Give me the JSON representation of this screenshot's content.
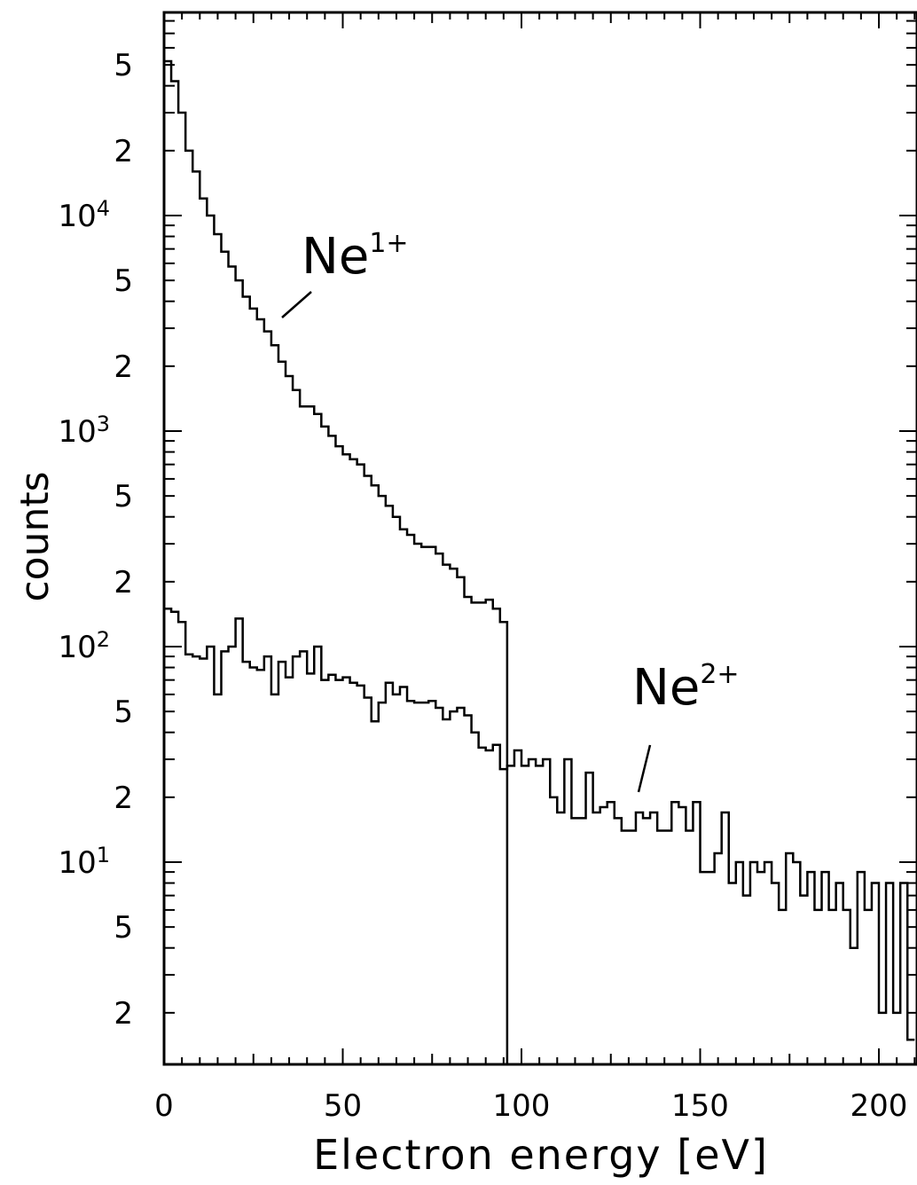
{
  "chart_data": {
    "type": "line",
    "xlabel": "Electron energy [eV]",
    "ylabel": "counts",
    "xlim": [
      0,
      210
    ],
    "ylim": [
      1.5,
      70000
    ],
    "yscale": "log",
    "grid": false,
    "x_ticks": [
      0,
      50,
      100,
      150,
      200
    ],
    "x_tick_labels": [
      "0",
      "50",
      "100",
      "150",
      "200"
    ],
    "y_ticks": [
      {
        "value": 50000,
        "mant": "5",
        "exp": ""
      },
      {
        "value": 20000,
        "mant": "2",
        "exp": ""
      },
      {
        "value": 10000,
        "mant": "10",
        "exp": "4"
      },
      {
        "value": 5000,
        "mant": "5",
        "exp": ""
      },
      {
        "value": 2000,
        "mant": "2",
        "exp": ""
      },
      {
        "value": 1000,
        "mant": "10",
        "exp": "3"
      },
      {
        "value": 500,
        "mant": "5",
        "exp": ""
      },
      {
        "value": 200,
        "mant": "2",
        "exp": ""
      },
      {
        "value": 100,
        "mant": "10",
        "exp": "2"
      },
      {
        "value": 50,
        "mant": "5",
        "exp": ""
      },
      {
        "value": 20,
        "mant": "2",
        "exp": ""
      },
      {
        "value": 10,
        "mant": "10",
        "exp": "1"
      },
      {
        "value": 5,
        "mant": "5",
        "exp": ""
      },
      {
        "value": 2,
        "mant": "2",
        "exp": ""
      }
    ],
    "series": [
      {
        "step": "step-hist",
        "x_start": 0,
        "bin_width": 2,
        "values": [
          52000,
          42000,
          30000,
          20000,
          16000,
          12000,
          10000,
          8200,
          6800,
          5800,
          5000,
          4200,
          3700,
          3300,
          2900,
          2500,
          2100,
          1800,
          1550,
          1300,
          1300,
          1200,
          1050,
          950,
          850,
          780,
          740,
          700,
          620,
          560,
          500,
          450,
          400,
          350,
          330,
          300,
          290,
          290,
          270,
          240,
          230,
          210,
          170,
          160,
          160,
          165,
          150,
          130,
          0
        ]
      },
      {
        "step": "step-hist",
        "x_start": 0,
        "bin_width": 2,
        "values": [
          150,
          145,
          130,
          92,
          90,
          88,
          100,
          60,
          95,
          100,
          135,
          85,
          80,
          78,
          90,
          60,
          85,
          72,
          90,
          95,
          75,
          100,
          70,
          74,
          70,
          72,
          68,
          66,
          58,
          45,
          55,
          68,
          60,
          65,
          56,
          55,
          55,
          56,
          52,
          46,
          50,
          52,
          48,
          40,
          34,
          33,
          35,
          27,
          28,
          33,
          28,
          30,
          28,
          30,
          20,
          17,
          30,
          16,
          16,
          26,
          17,
          18,
          19,
          16,
          14,
          14,
          17,
          16,
          17,
          14,
          14,
          19,
          18,
          14,
          19,
          9,
          9,
          11,
          17,
          8,
          10,
          7,
          10,
          9,
          10,
          8,
          6,
          11,
          10,
          7,
          9,
          6,
          9,
          6,
          8,
          6,
          4,
          9,
          6,
          8,
          2,
          8,
          2,
          8,
          1.5
        ]
      }
    ],
    "annotations": [
      {
        "base": "Ne",
        "sup": "1+",
        "x": 40,
        "y": 5500
      },
      {
        "base": "Ne",
        "sup": "2+",
        "x": 132,
        "y": 42
      }
    ]
  }
}
